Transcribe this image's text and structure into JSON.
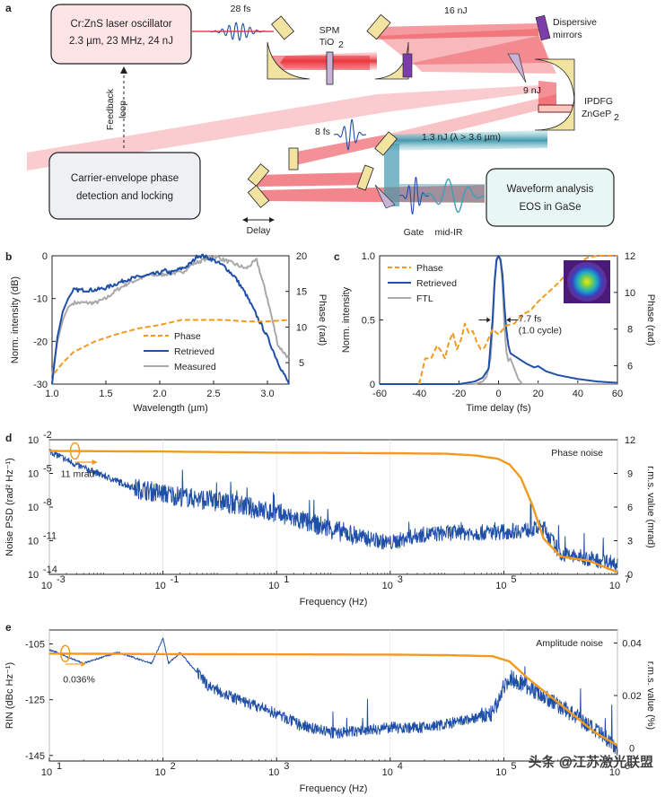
{
  "panel_a": {
    "label": "a",
    "oscillator": {
      "line1": "Cr:ZnS laser oscillator",
      "line2": "2.3 µm, 23 MHz, 24 nJ"
    },
    "pulse_28fs": "28 fs",
    "spm_line1": "SPM",
    "spm_line2": "TiO",
    "spm_sub": "2",
    "energy_16nj": "16 nJ",
    "dispersive_line1": "Dispersive",
    "dispersive_line2": "mirrors",
    "energy_9nj": "9 nJ",
    "ipdfg_line1": "IPDFG",
    "ipdfg_line2": "ZnGeP",
    "ipdfg_sub": "2",
    "feedback_line1": "Feedback",
    "feedback_line2": "loop",
    "pulse_8fs": "8 fs",
    "midir_energy": "1.3 nJ (λ > 3.6 µm)",
    "cep_line1": "Carrier-envelope phase",
    "cep_line2": "detection and locking",
    "waveform_line1": "Waveform analysis",
    "waveform_line2": "EOS in GaSe",
    "delay": "Delay",
    "gate": "Gate",
    "midir": "mid-IR"
  },
  "colors": {
    "orange": "#f39a1e",
    "blue": "#1f4fa6",
    "gray": "#a9a9a9",
    "laser_red": "#e8202a",
    "teal": "#3aa0b4",
    "purple": "#7b3ea8",
    "mirror": "#f3e3a0"
  },
  "chart_data": [
    {
      "panel": "b",
      "type": "line",
      "xlabel": "Wavelength (µm)",
      "ylabel": "Norm. intensity (dB)",
      "y2label": "Phase (rad)",
      "xlim": [
        1.0,
        3.2
      ],
      "ylim": [
        -30,
        0
      ],
      "y2lim": [
        2,
        20
      ],
      "xticks": [
        "1.0",
        "1.5",
        "2.0",
        "2.5",
        "3.0"
      ],
      "yticks": [
        "0",
        "-10",
        "-20",
        "-30"
      ],
      "y2ticks": [
        "5",
        "10",
        "15",
        "20"
      ],
      "legend": [
        "Phase",
        "Retrieved",
        "Measured"
      ],
      "series": [
        {
          "name": "Phase",
          "axis": "y2",
          "style": "dashed-orange",
          "x": [
            1.02,
            1.1,
            1.2,
            1.4,
            1.6,
            1.8,
            2.0,
            2.2,
            2.4,
            2.6,
            2.8,
            3.0,
            3.2
          ],
          "y": [
            3.5,
            5.0,
            6.5,
            8.0,
            9.0,
            9.8,
            10.3,
            11.0,
            11.0,
            11.0,
            10.8,
            10.8,
            11.0
          ]
        },
        {
          "name": "Retrieved",
          "axis": "y",
          "style": "solid-blue",
          "x": [
            1.0,
            1.05,
            1.1,
            1.15,
            1.2,
            1.3,
            1.4,
            1.5,
            1.6,
            1.7,
            1.8,
            1.9,
            2.0,
            2.05,
            2.1,
            2.15,
            2.2,
            2.25,
            2.3,
            2.35,
            2.4,
            2.45,
            2.5,
            2.6,
            2.7,
            2.8,
            2.9,
            3.0,
            3.1,
            3.2
          ],
          "y": [
            -30,
            -19,
            -13,
            -10,
            -8,
            -8,
            -8,
            -7.5,
            -6.5,
            -5.5,
            -5,
            -4.5,
            -4,
            -3.5,
            -4,
            -3.5,
            -3,
            -2.5,
            -1.5,
            0,
            0,
            -0.5,
            -1,
            -2.5,
            -5,
            -9,
            -14,
            -19,
            -25,
            -30
          ]
        },
        {
          "name": "Measured",
          "axis": "y",
          "style": "solid-gray",
          "x": [
            1.0,
            1.05,
            1.1,
            1.15,
            1.2,
            1.3,
            1.4,
            1.5,
            1.6,
            1.7,
            1.8,
            1.9,
            2.0,
            2.1,
            2.2,
            2.3,
            2.4,
            2.5,
            2.6,
            2.7,
            2.8,
            2.9,
            3.0,
            3.1,
            3.2
          ],
          "y": [
            -28,
            -20,
            -15,
            -12,
            -11,
            -11,
            -11,
            -10,
            -8,
            -6.5,
            -5.5,
            -4.5,
            -4.5,
            -4,
            -4,
            -2,
            -1,
            0,
            -1,
            -2,
            -3,
            -1,
            -10,
            -21,
            -24
          ]
        }
      ]
    },
    {
      "panel": "c",
      "type": "line",
      "xlabel": "Time delay (fs)",
      "ylabel": "Norm. intensity",
      "y2label": "Phase (rad)",
      "xlim": [
        -60,
        60
      ],
      "ylim": [
        0,
        1.0
      ],
      "y2lim": [
        5,
        12
      ],
      "xticks": [
        "-60",
        "-40",
        "-20",
        "0",
        "20",
        "40",
        "60"
      ],
      "yticks": [
        "0",
        "0.5",
        "1.0"
      ],
      "y2ticks": [
        "6",
        "8",
        "10",
        "12"
      ],
      "legend": [
        "Phase",
        "Retrieved",
        "FTL"
      ],
      "annotation_line1": "7.7 fs",
      "annotation_line2": "(1.0 cycle)",
      "series": [
        {
          "name": "Phase",
          "axis": "y2",
          "style": "dashed-orange",
          "x": [
            -40,
            -37,
            -34,
            -31,
            -29,
            -27,
            -25,
            -23,
            -21,
            -19,
            -17,
            -15,
            -13,
            -11,
            -9,
            -7,
            -5,
            -3,
            0,
            4,
            8,
            12,
            16,
            20,
            24,
            30,
            35,
            40,
            45,
            50,
            55,
            60
          ],
          "y": [
            5,
            6.4,
            6.4,
            7.1,
            6.8,
            6.4,
            7.3,
            7.8,
            6.9,
            7.4,
            8.3,
            7.8,
            7.9,
            7.3,
            6.9,
            7.0,
            7.5,
            8.0,
            7.7,
            8.2,
            8.3,
            8.8,
            9.0,
            9.5,
            9.9,
            10.5,
            11.1,
            11.6,
            11.9,
            12.0,
            12.0,
            12.0
          ]
        },
        {
          "name": "Retrieved",
          "axis": "y",
          "style": "solid-blue",
          "x": [
            -60,
            -20,
            -12,
            -8,
            -5,
            -3,
            -2,
            -1,
            0,
            1,
            2,
            3,
            4,
            5,
            6,
            8,
            10,
            14,
            18,
            20,
            24,
            30,
            40,
            50,
            60
          ],
          "y": [
            0,
            0,
            0.02,
            0.05,
            0.12,
            0.5,
            0.8,
            0.97,
            1.0,
            0.97,
            0.85,
            0.6,
            0.42,
            0.3,
            0.24,
            0.22,
            0.2,
            0.16,
            0.13,
            0.14,
            0.1,
            0.07,
            0.04,
            0.02,
            0.01
          ]
        },
        {
          "name": "FTL",
          "axis": "y",
          "style": "solid-gray",
          "x": [
            -60,
            -12,
            -8,
            -6,
            -4,
            -3,
            -2,
            -1,
            0,
            1,
            2,
            3,
            4,
            5,
            6,
            8,
            10,
            12,
            60
          ],
          "y": [
            0,
            0,
            0.02,
            0.06,
            0.2,
            0.45,
            0.78,
            0.96,
            1.0,
            0.96,
            0.78,
            0.45,
            0.25,
            0.18,
            0.2,
            0.12,
            0.04,
            0.0,
            0
          ]
        }
      ]
    },
    {
      "panel": "d",
      "type": "line",
      "title": "Phase noise",
      "xlabel": "Frequency (Hz)",
      "ylabel": "Noise PSD (rad² Hz⁻¹)",
      "y2label": "r.m.s. value (mrad)",
      "xlim_log10": [
        -3,
        7
      ],
      "ylim_log10": [
        -14,
        -2
      ],
      "y2lim": [
        0,
        12
      ],
      "xticks": [
        "-3",
        "-1",
        "1",
        "3",
        "5",
        "7"
      ],
      "yticks": [
        "-2",
        "-5",
        "-8",
        "-11",
        "-14"
      ],
      "y2ticks": [
        "0",
        "3",
        "6",
        "9",
        "12"
      ],
      "annotation": "11 mrad",
      "series": [
        {
          "name": "PSD",
          "axis": "y",
          "style": "solid-blue",
          "x_log10": [
            -3,
            -2.5,
            -2,
            -1.5,
            -1,
            -0.5,
            0,
            0.5,
            1,
            1.5,
            2,
            2.5,
            3,
            3.5,
            4,
            4.5,
            5,
            5.5,
            5.7,
            6,
            6.5,
            7
          ],
          "y_log10": [
            -3,
            -4.3,
            -5.3,
            -6.3,
            -6.8,
            -7.2,
            -7.5,
            -8,
            -8.6,
            -9.3,
            -10,
            -10.7,
            -11.2,
            -10.5,
            -10.3,
            -10.3,
            -10.2,
            -10.0,
            -9.8,
            -12.2,
            -12.6,
            -13
          ]
        },
        {
          "name": "r.m.s.",
          "axis": "y2",
          "style": "solid-orange",
          "x_log10": [
            -3,
            -1,
            1,
            3,
            4,
            4.5,
            4.9,
            5.1,
            5.3,
            5.5,
            5.7,
            6,
            6.5,
            7
          ],
          "y2": [
            11,
            10.95,
            10.85,
            10.8,
            10.75,
            10.6,
            10.3,
            9.8,
            8.6,
            6.2,
            3.2,
            1.6,
            1.2,
            0.2
          ]
        }
      ]
    },
    {
      "panel": "e",
      "type": "line",
      "title": "Amplitude noise",
      "xlabel": "Frequency (Hz)",
      "ylabel": "RIN (dBc Hz⁻¹)",
      "y2label": "r.m.s. value (%)",
      "xlim_log10": [
        1,
        6
      ],
      "ylim": [
        -147,
        -100
      ],
      "y2lim": [
        -0.005,
        0.045
      ],
      "xticks": [
        "1",
        "2",
        "3",
        "4",
        "5",
        "6"
      ],
      "yticks": [
        "-105",
        "-125",
        "-145"
      ],
      "y2ticks": [
        "0",
        "0.02",
        "0.04"
      ],
      "annotation": "0.036%",
      "series": [
        {
          "name": "RIN",
          "axis": "y",
          "style": "solid-blue",
          "x_log10": [
            1,
            1.3,
            1.6,
            1.9,
            2,
            2.05,
            2.15,
            2.25,
            2.4,
            2.6,
            2.8,
            3,
            3.2,
            3.5,
            3.8,
            4,
            4.3,
            4.6,
            4.9,
            5.05,
            5.2,
            5.4,
            5.6,
            5.8,
            6
          ],
          "y": [
            -107,
            -112,
            -108,
            -112,
            -103,
            -112,
            -108,
            -113,
            -120,
            -124,
            -127,
            -130,
            -134,
            -137,
            -136,
            -135,
            -135,
            -133,
            -130,
            -117,
            -120,
            -125,
            -130,
            -136,
            -142
          ]
        },
        {
          "name": "r.m.s.",
          "axis": "y2",
          "style": "solid-orange",
          "x_log10": [
            1,
            2,
            3,
            4,
            4.5,
            4.9,
            5.05,
            5.2,
            5.4,
            5.6,
            5.8,
            6
          ],
          "y2": [
            0.036,
            0.0358,
            0.0357,
            0.0356,
            0.0354,
            0.035,
            0.033,
            0.027,
            0.02,
            0.013,
            0.006,
            0.001
          ]
        }
      ]
    }
  ],
  "watermark": "头条 @江苏激光联盟"
}
